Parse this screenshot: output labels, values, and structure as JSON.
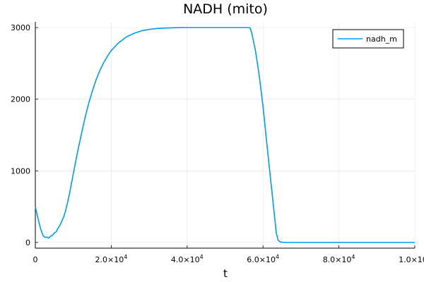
{
  "chart_data": {
    "type": "line",
    "title": "NADH (mito)",
    "xlabel": "t",
    "ylabel": "",
    "xlim": [
      0,
      100000
    ],
    "ylim": [
      -80,
      3080
    ],
    "grid": true,
    "legend_position": "top-right",
    "x_ticks": [
      {
        "value": 0,
        "label": "0"
      },
      {
        "value": 20000,
        "label": "2.0×10",
        "exp": "4"
      },
      {
        "value": 40000,
        "label": "4.0×10",
        "exp": "4"
      },
      {
        "value": 60000,
        "label": "6.0×10",
        "exp": "4"
      },
      {
        "value": 80000,
        "label": "8.0×10",
        "exp": "4"
      },
      {
        "value": 100000,
        "label": "1.0×10",
        "exp": "5"
      }
    ],
    "y_ticks": [
      {
        "value": 0,
        "label": "0"
      },
      {
        "value": 1000,
        "label": "1000"
      },
      {
        "value": 2000,
        "label": "2000"
      },
      {
        "value": 3000,
        "label": "3000"
      }
    ],
    "series": [
      {
        "name": "nadh_m",
        "color": "#009AFA",
        "x": [
          0,
          500,
          1000,
          1500,
          2000,
          2500,
          3000,
          3500,
          4000,
          4500,
          5000,
          5500,
          6000,
          6500,
          7000,
          7500,
          8000,
          8500,
          9000,
          10000,
          11000,
          12000,
          13000,
          14000,
          15000,
          16000,
          17000,
          18000,
          19000,
          20000,
          22000,
          24000,
          26000,
          28000,
          30000,
          32000,
          34000,
          36000,
          38000,
          40000,
          42000,
          44000,
          46000,
          48000,
          50000,
          52000,
          54000,
          56000,
          56600,
          57000,
          58000,
          59000,
          60000,
          61000,
          62000,
          63000,
          63500,
          64000,
          64500,
          65000,
          66000,
          70000,
          80000,
          90000,
          100000
        ],
        "y": [
          500,
          380,
          270,
          170,
          100,
          70,
          75,
          60,
          85,
          100,
          130,
          150,
          200,
          240,
          300,
          360,
          450,
          560,
          680,
          960,
          1230,
          1480,
          1720,
          1930,
          2110,
          2270,
          2400,
          2510,
          2600,
          2680,
          2790,
          2870,
          2920,
          2955,
          2975,
          2987,
          2993,
          2997,
          2999,
          3000,
          3000,
          3000,
          3000,
          3000,
          3000,
          3000,
          3000,
          3000,
          2995,
          2930,
          2680,
          2330,
          1900,
          1380,
          880,
          380,
          130,
          30,
          8,
          3,
          1,
          0,
          0,
          0,
          0
        ]
      }
    ]
  }
}
